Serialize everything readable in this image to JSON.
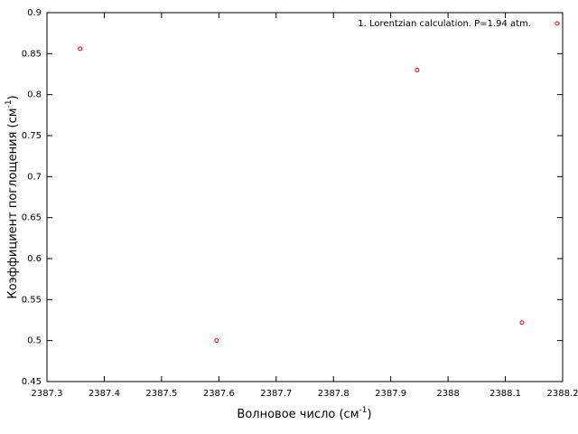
{
  "chart_data": {
    "type": "scatter",
    "xlabel": {
      "text": "Волновое число (см",
      "sup": "-1",
      "end": ")"
    },
    "ylabel": {
      "text": "Коэффициент поглощения (см",
      "sup": "-1",
      "end": ")"
    },
    "series": [
      {
        "name": "1. Lorentzian calculation. P=1.94 atm.",
        "color": "#ff0000",
        "x": [
          2387.358,
          2387.596,
          2387.946,
          2388.129
        ],
        "values": [
          0.856,
          0.5,
          0.83,
          0.522
        ]
      }
    ],
    "xlim": [
      2387.3,
      2388.2
    ],
    "xticks": [
      2387.3,
      2387.4,
      2387.5,
      2387.6,
      2387.7,
      2387.8,
      2387.9,
      2388,
      2388.1,
      2388.2
    ],
    "ylim": [
      0.45,
      0.9
    ],
    "yticks": [
      0.45,
      0.5,
      0.55,
      0.6,
      0.65,
      0.7,
      0.75,
      0.8,
      0.85,
      0.9
    ],
    "grid": false,
    "legend": "top-right"
  }
}
